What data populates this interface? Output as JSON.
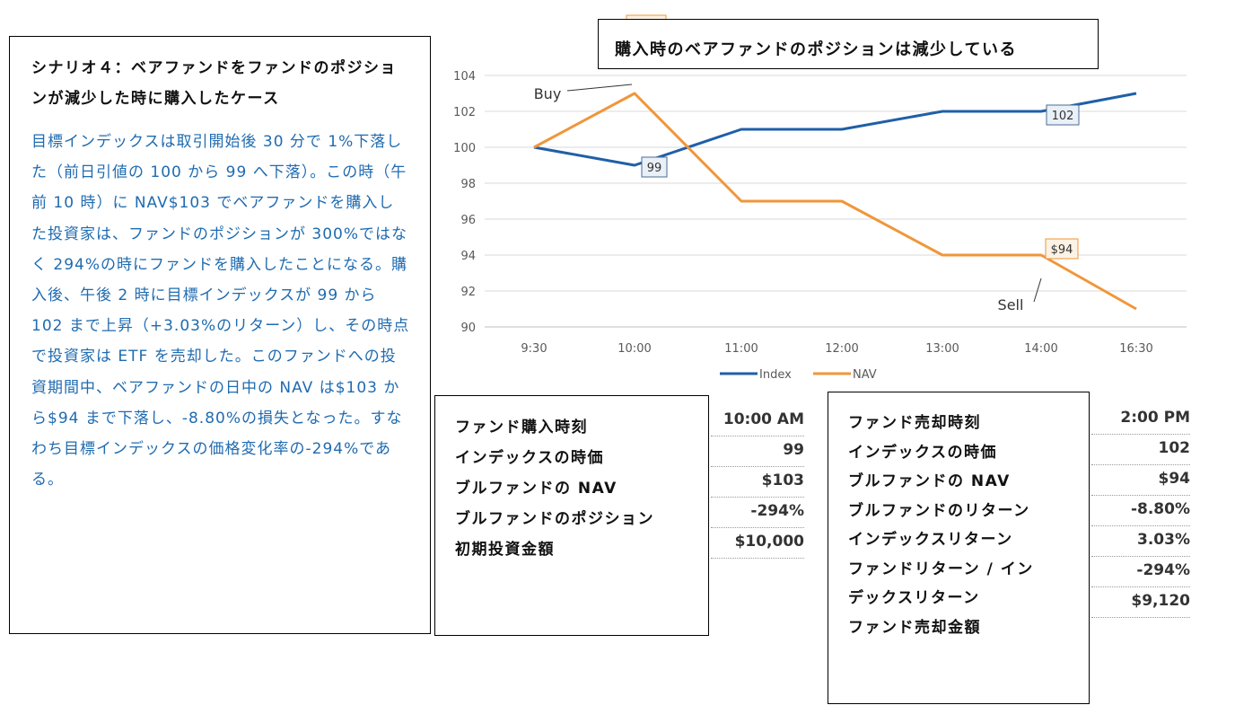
{
  "scenario": {
    "title": "シナリオ４：ベアファンドをファンドのポジションが減少した時に購入したケース",
    "body": "目標インデックスは取引開始後 30 分で 1%下落した（前日引値の 100 から 99 へ下落）。この時（午前 10 時）に NAV$103 でベアファンドを購入した投資家は、ファンドのポジションが 300%ではなく 294%の時にファンドを購入したことになる。購入後、午後 2 時に目標インデックスが 99 から 102 まで上昇（+3.03%のリターン）し、その時点で投資家は ETF を売却した。このファンドへの投資期間中、ベアファンドの日中の NAV は$103 から$94 まで下落し、-8.80%の損失となった。すなわち目標インデックスの価格変化率の-294%である。"
  },
  "chart_data": {
    "type": "line",
    "title": "購入時のベアファンドのポジションは減少している",
    "categories": [
      "9:30",
      "10:00",
      "11:00",
      "12:00",
      "13:00",
      "14:00",
      "16:30"
    ],
    "ylim": [
      90,
      104
    ],
    "yticks": [
      90,
      92,
      94,
      96,
      98,
      100,
      102,
      104
    ],
    "grid": "horizontal",
    "legend_position": "bottom",
    "series": [
      {
        "name": "Index",
        "color": "#1f5fa8",
        "values": [
          100,
          99,
          101,
          101,
          102,
          102,
          103
        ]
      },
      {
        "name": "NAV",
        "color": "#f0963a",
        "values": [
          100,
          103,
          97,
          97,
          94,
          94,
          91
        ]
      }
    ],
    "data_labels": [
      {
        "series": "NAV",
        "category": "10:00",
        "text": "$103"
      },
      {
        "series": "Index",
        "category": "10:00",
        "text": "99"
      },
      {
        "series": "Index",
        "category": "14:00",
        "text": "102"
      },
      {
        "series": "NAV",
        "category": "14:00",
        "text": "$94"
      }
    ],
    "annotations": [
      {
        "text": "Buy",
        "category": "10:00"
      },
      {
        "text": "Sell",
        "category": "14:00"
      }
    ]
  },
  "buy_panel": {
    "labels": [
      "ファンド購入時刻",
      "インデックスの時価",
      "ブルファンドの NAV",
      "ブルファンドのポジション",
      "初期投資金額"
    ],
    "values": [
      "10:00 AM",
      "99",
      "$103",
      "-294%",
      "$10,000"
    ]
  },
  "sell_panel": {
    "labels": [
      "ファンド売却時刻",
      "インデックスの時価",
      "ブルファンドの NAV",
      "ブルファンドのリターン",
      "インデックスリターン",
      "ファンドリターン / イン",
      "デックスリターン",
      "ファンド売却金額"
    ],
    "values": [
      "2:00 PM",
      "102",
      "$94",
      "-8.80%",
      "3.03%",
      "-294%",
      "$9,120"
    ]
  }
}
